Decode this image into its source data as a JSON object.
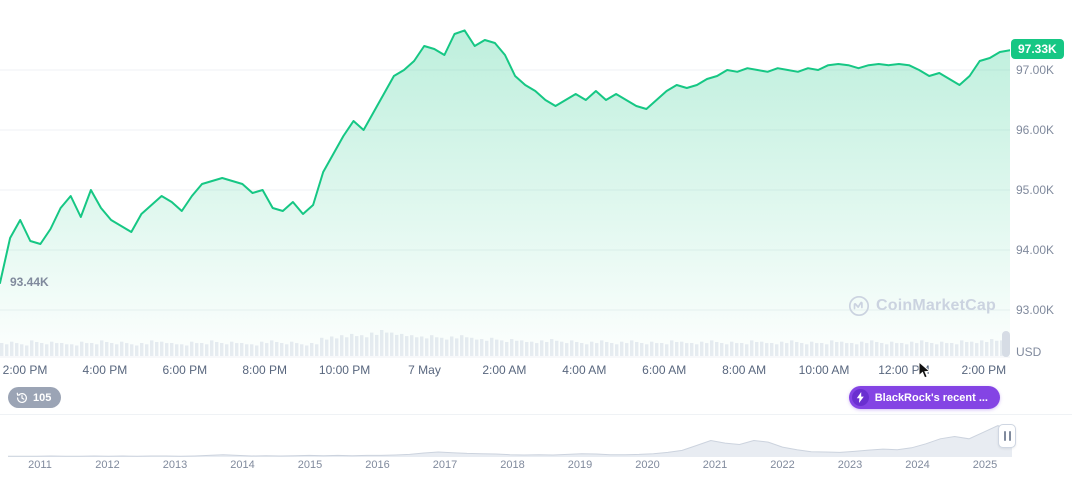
{
  "colors": {
    "accent_green": "#16c784",
    "news_purple": "#8444e4",
    "grid_gray": "#eff2f5",
    "volume_gray": "#e9ecf2",
    "label_gray": "#808a9d"
  },
  "watermark": {
    "text": "CoinMarketCap"
  },
  "badges": {
    "viewers_count": "105",
    "news_label": "BlackRock's recent ..."
  },
  "chart_data": {
    "type": "area",
    "main": {
      "unit": "USD",
      "current_price_label": "97.33K",
      "low_label": "93.44K",
      "ylim": [
        92.3,
        97.9
      ],
      "y_ticks": [
        {
          "label": "97.00K",
          "value": 97
        },
        {
          "label": "96.00K",
          "value": 96
        },
        {
          "label": "95.00K",
          "value": 95
        },
        {
          "label": "94.00K",
          "value": 94
        },
        {
          "label": "93.00K",
          "value": 93
        }
      ],
      "x_labels": [
        "2:00 PM",
        "4:00 PM",
        "6:00 PM",
        "8:00 PM",
        "10:00 PM",
        "7 May",
        "2:00 AM",
        "4:00 AM",
        "6:00 AM",
        "8:00 AM",
        "10:00 AM",
        "12:00 PM",
        "2:00 PM"
      ],
      "prices": [
        93.45,
        94.2,
        94.5,
        94.15,
        94.1,
        94.35,
        94.7,
        94.9,
        94.55,
        95.0,
        94.7,
        94.5,
        94.4,
        94.3,
        94.6,
        94.75,
        94.9,
        94.8,
        94.65,
        94.9,
        95.1,
        95.15,
        95.2,
        95.15,
        95.1,
        94.95,
        95.0,
        94.7,
        94.65,
        94.8,
        94.6,
        94.75,
        95.3,
        95.6,
        95.9,
        96.15,
        96.0,
        96.3,
        96.6,
        96.9,
        97.0,
        97.15,
        97.4,
        97.35,
        97.25,
        97.6,
        97.66,
        97.4,
        97.5,
        97.45,
        97.25,
        96.9,
        96.75,
        96.65,
        96.5,
        96.4,
        96.5,
        96.6,
        96.5,
        96.65,
        96.5,
        96.6,
        96.5,
        96.4,
        96.35,
        96.5,
        96.65,
        96.75,
        96.7,
        96.75,
        96.85,
        96.9,
        97.0,
        96.97,
        97.03,
        97.0,
        96.97,
        97.03,
        97.0,
        96.97,
        97.03,
        97.0,
        97.08,
        97.1,
        97.08,
        97.03,
        97.08,
        97.1,
        97.08,
        97.1,
        97.08,
        97.0,
        96.9,
        96.95,
        96.85,
        96.75,
        96.9,
        97.15,
        97.2,
        97.3,
        97.33
      ],
      "volumes": [
        0.5,
        0.55,
        0.45,
        0.6,
        0.5,
        0.55,
        0.5,
        0.45,
        0.55,
        0.5,
        0.6,
        0.5,
        0.55,
        0.45,
        0.5,
        0.6,
        0.55,
        0.5,
        0.45,
        0.55,
        0.5,
        0.6,
        0.5,
        0.55,
        0.5,
        0.45,
        0.55,
        0.6,
        0.5,
        0.55,
        0.45,
        0.5,
        0.7,
        0.75,
        0.8,
        0.85,
        0.8,
        0.9,
        1.0,
        0.9,
        0.85,
        0.8,
        0.75,
        0.8,
        0.7,
        0.75,
        0.8,
        0.7,
        0.65,
        0.7,
        0.6,
        0.65,
        0.6,
        0.55,
        0.6,
        0.65,
        0.55,
        0.6,
        0.5,
        0.55,
        0.6,
        0.5,
        0.55,
        0.6,
        0.5,
        0.55,
        0.5,
        0.6,
        0.55,
        0.5,
        0.55,
        0.6,
        0.5,
        0.55,
        0.5,
        0.6,
        0.55,
        0.5,
        0.55,
        0.6,
        0.5,
        0.55,
        0.5,
        0.6,
        0.55,
        0.5,
        0.55,
        0.6,
        0.5,
        0.55,
        0.5,
        0.55,
        0.6,
        0.5,
        0.55,
        0.5,
        0.6,
        0.55,
        0.6,
        0.65,
        0.6
      ]
    },
    "navigator": {
      "years": [
        "2011",
        "2012",
        "2013",
        "2014",
        "2015",
        "2016",
        "2017",
        "2018",
        "2019",
        "2020",
        "2021",
        "2022",
        "2023",
        "2024",
        "2025"
      ],
      "values": [
        0.02,
        0.02,
        0.02,
        0.03,
        0.02,
        0.02,
        0.03,
        0.02,
        0.03,
        0.02,
        0.03,
        0.03,
        0.02,
        0.03,
        0.05,
        0.07,
        0.05,
        0.03,
        0.04,
        0.03,
        0.04,
        0.05,
        0.04,
        0.05,
        0.04,
        0.05,
        0.05,
        0.06,
        0.08,
        0.12,
        0.15,
        0.13,
        0.11,
        0.1,
        0.09,
        0.07,
        0.06,
        0.07,
        0.06,
        0.08,
        0.1,
        0.09,
        0.07,
        0.07,
        0.08,
        0.1,
        0.14,
        0.2,
        0.35,
        0.5,
        0.42,
        0.38,
        0.5,
        0.45,
        0.3,
        0.22,
        0.16,
        0.15,
        0.14,
        0.17,
        0.21,
        0.24,
        0.22,
        0.28,
        0.4,
        0.55,
        0.62,
        0.55,
        0.75,
        0.95,
        0.85
      ]
    }
  }
}
